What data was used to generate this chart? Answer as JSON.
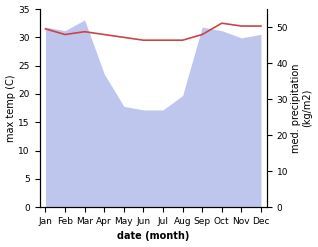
{
  "months": [
    "Jan",
    "Feb",
    "Mar",
    "Apr",
    "May",
    "Jun",
    "Jul",
    "Aug",
    "Sep",
    "Oct",
    "Nov",
    "Dec"
  ],
  "month_indices": [
    0,
    1,
    2,
    3,
    4,
    5,
    6,
    7,
    8,
    9,
    10,
    11
  ],
  "max_temp": [
    31.5,
    30.5,
    31.0,
    30.5,
    30.0,
    29.5,
    29.5,
    29.5,
    30.5,
    32.5,
    32.0,
    32.0
  ],
  "precipitation": [
    50,
    49,
    52,
    37,
    28,
    27,
    27,
    31,
    50,
    49,
    47,
    48
  ],
  "temp_color": "#cc4444",
  "precip_color": "#aab4e8",
  "precip_alpha": 0.75,
  "temp_ylim": [
    0,
    35
  ],
  "precip_ylim": [
    0,
    55
  ],
  "temp_yticks": [
    0,
    5,
    10,
    15,
    20,
    25,
    30,
    35
  ],
  "precip_yticks": [
    0,
    10,
    20,
    30,
    40,
    50
  ],
  "xlabel": "date (month)",
  "ylabel_left": "max temp (C)",
  "ylabel_right": "med. precipitation\n(kg/m2)",
  "label_fontsize": 7,
  "tick_fontsize": 6.5
}
